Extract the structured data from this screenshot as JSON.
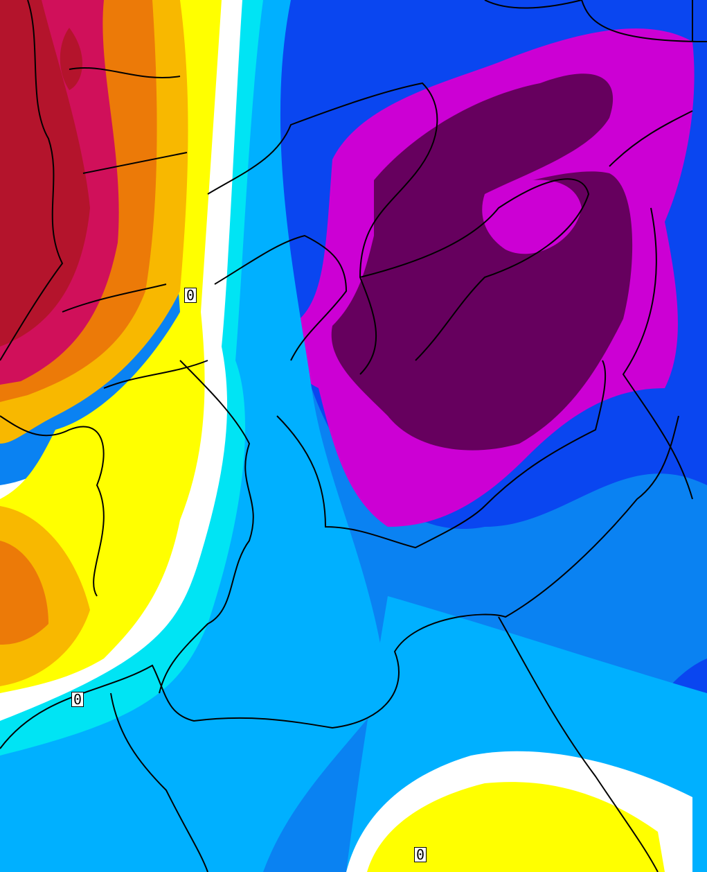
{
  "map": {
    "contour_labels": [
      {
        "id": "zero-label-north",
        "text": "0"
      },
      {
        "id": "zero-label-west",
        "text": "0"
      },
      {
        "id": "zero-label-south",
        "text": "0"
      }
    ],
    "colors": {
      "dark_red": "#b4142c",
      "crimson": "#d0105a",
      "orange": "#ec7a08",
      "gold": "#f8b800",
      "yellow": "#ffff00",
      "white": "#ffffff",
      "cyan": "#00e4f4",
      "light_blue": "#00b0ff",
      "mid_blue": "#0a82f2",
      "blue": "#0a46f0",
      "magenta": "#cc00d4",
      "purple": "#66005e",
      "border": "#000000"
    }
  }
}
